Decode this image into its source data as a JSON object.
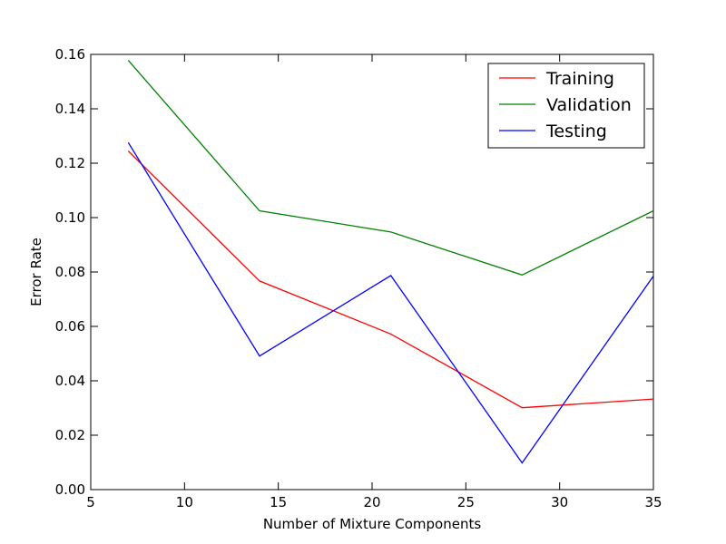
{
  "chart_data": {
    "type": "line",
    "title": "",
    "xlabel": "Number of Mixture Components",
    "ylabel": "Error Rate",
    "xlim": [
      5,
      35
    ],
    "ylim": [
      0.0,
      0.16
    ],
    "x_ticks": [
      "5",
      "10",
      "15",
      "20",
      "25",
      "30",
      "35"
    ],
    "y_ticks": [
      "0.00",
      "0.02",
      "0.04",
      "0.06",
      "0.08",
      "0.10",
      "0.12",
      "0.14",
      "0.16"
    ],
    "x": [
      7,
      14,
      21,
      28,
      35
    ],
    "series": [
      {
        "name": "Training",
        "color": "#ff0000",
        "values": [
          0.1245,
          0.0767,
          0.0572,
          0.0301,
          0.0333
        ]
      },
      {
        "name": "Validation",
        "color": "#008000",
        "values": [
          0.1578,
          0.1025,
          0.0947,
          0.0789,
          0.1025
        ]
      },
      {
        "name": "Testing",
        "color": "#0000ff",
        "values": [
          0.1276,
          0.0491,
          0.0787,
          0.0098,
          0.0785
        ]
      }
    ],
    "legend_position": "top-right",
    "grid": false
  }
}
